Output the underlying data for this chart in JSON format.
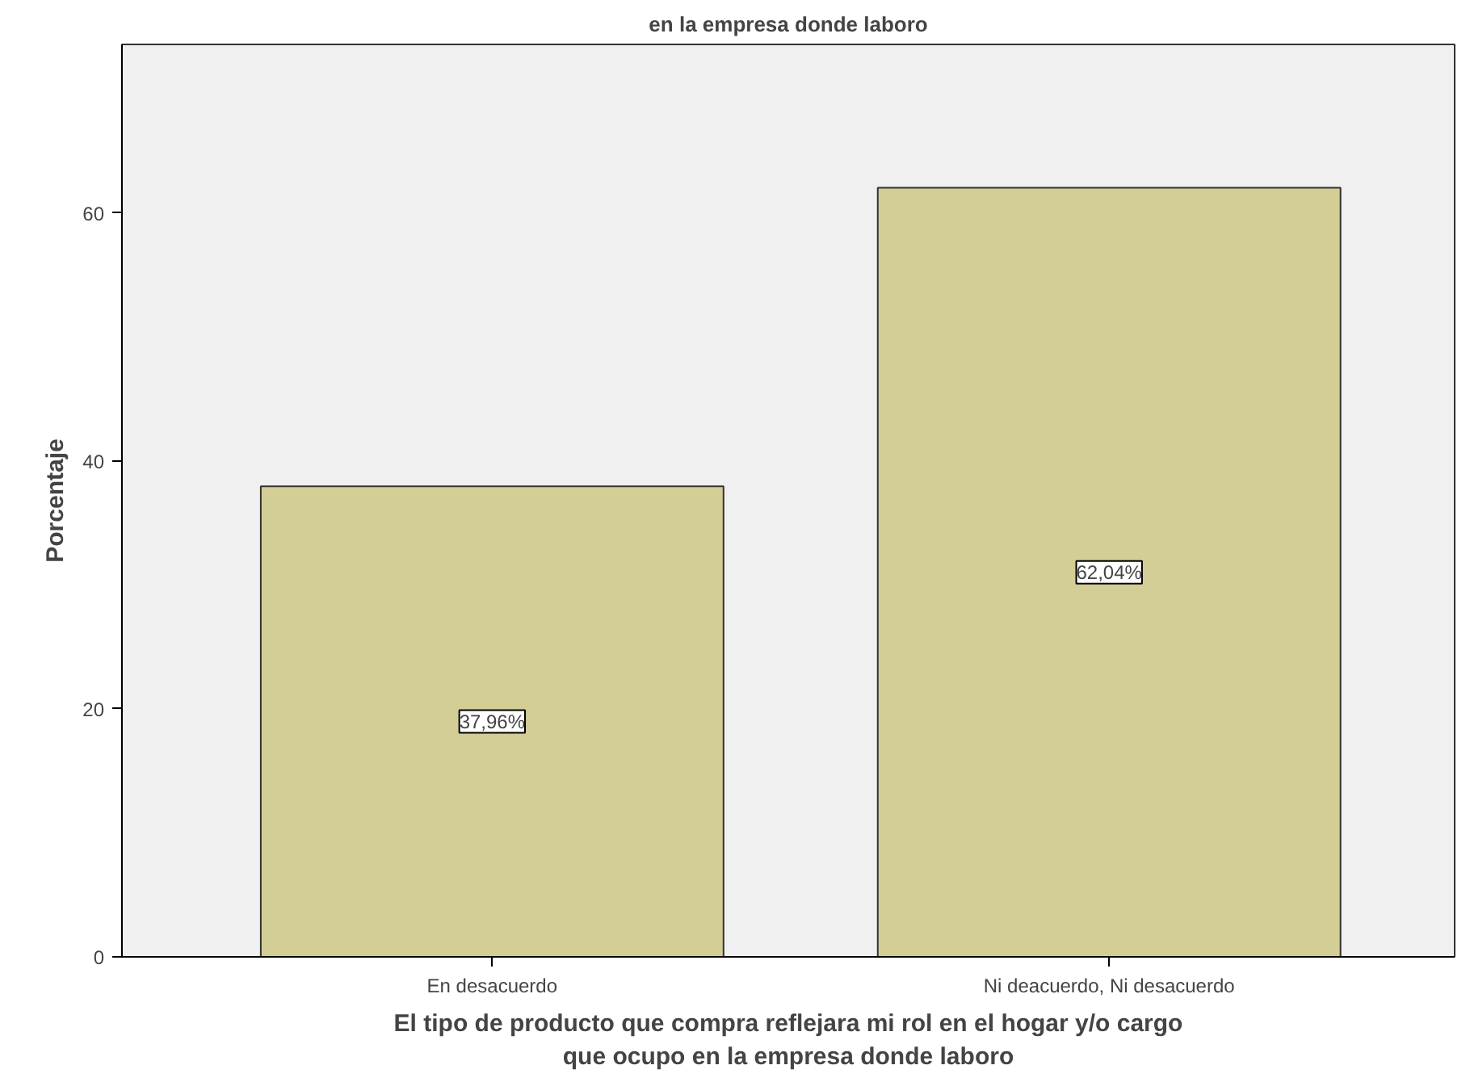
{
  "chart_data": {
    "type": "bar",
    "title": "en la empresa donde laboro",
    "xlabel": "El tipo de producto que compra reflejara mi rol en el hogar y/o cargo que ocupo en la empresa donde laboro",
    "ylabel": "Porcentaje",
    "categories": [
      "En desacuerdo",
      "Ni deacuerdo, Ni desacuerdo"
    ],
    "values": [
      37.96,
      62.04
    ],
    "value_labels": [
      "37,96%",
      "62,04%"
    ],
    "color": "#d3cd96",
    "ylim": [
      0,
      73.6
    ],
    "yticks": [
      0,
      20,
      40,
      60
    ],
    "grid": false
  }
}
